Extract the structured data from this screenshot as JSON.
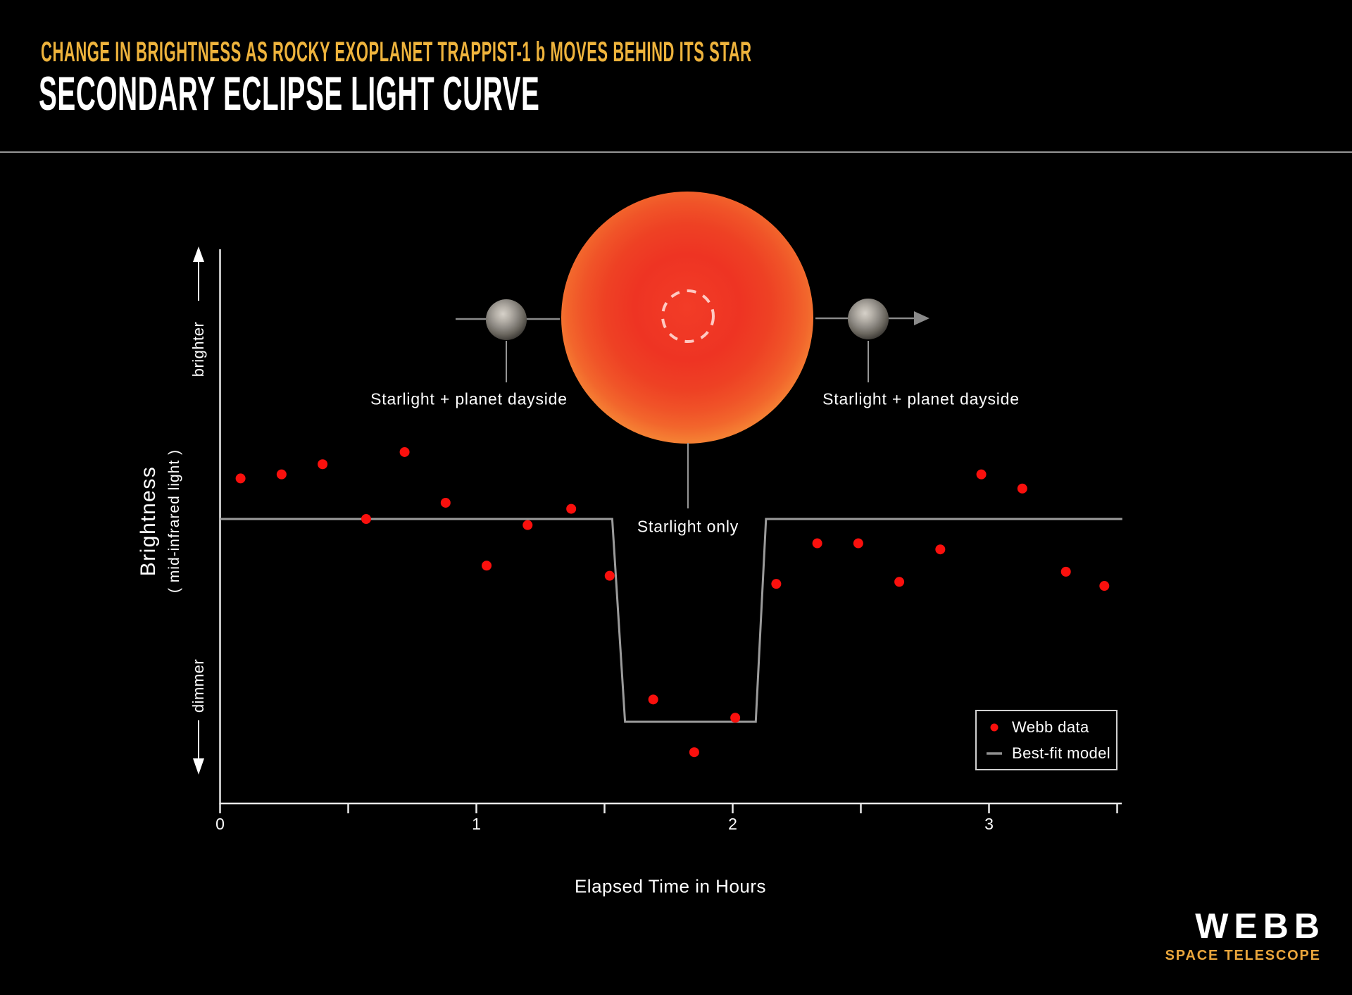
{
  "header": {
    "eyebrow": "CHANGE IN BRIGHTNESS AS ROCKY EXOPLANET TRAPPIST-1 b MOVES BEHIND ITS STAR",
    "title": "SECONDARY ECLIPSE LIGHT CURVE"
  },
  "colors": {
    "background": "#000000",
    "accent_gold": "#eeb33c",
    "title_white": "#ffffff",
    "webb_data_red": "#fa100d",
    "model_line_gray": "#9b9b9b",
    "axis_white": "#e9e9e9",
    "star_red_center": "#ee3423",
    "star_orange_rim": "#f57f33",
    "planet_gray": "#8e8a84"
  },
  "diagram": {
    "label_left": "Starlight + planet dayside",
    "label_right": "Starlight + planet dayside",
    "label_center": "Starlight only"
  },
  "axes": {
    "y_title": "Brightness",
    "y_subtitle": "( mid-infrared light )",
    "y_arrow_up_label": "brighter",
    "y_arrow_down_label": "dimmer",
    "x_title": "Elapsed Time in Hours"
  },
  "legend": {
    "items": [
      {
        "label": "Webb data",
        "marker": "red-dot"
      },
      {
        "label": "Best-fit model",
        "marker": "gray-line"
      }
    ]
  },
  "logo": {
    "title": "WEBB",
    "subtitle": "SPACE TELESCOPE"
  },
  "chart_data": {
    "type": "scatter",
    "title": "Secondary Eclipse Light Curve",
    "subtitle": "Change in brightness as rocky exoplanet TRAPPIST-1 b moves behind its star",
    "xlabel": "Elapsed Time in Hours",
    "ylabel": "Brightness ( mid-infrared light )",
    "x_range_hours": [
      0,
      3.55
    ],
    "x_major_ticks": [
      0,
      1,
      2,
      3
    ],
    "x_minor_ticks": [
      0.5,
      1.5,
      2.5,
      3.5
    ],
    "y_units": "relative brightness: 0 = starlight + planet dayside baseline, -1 = starlight-only eclipse floor",
    "grid": false,
    "legend_position": "lower right",
    "series": [
      {
        "name": "Webb data",
        "type": "scatter",
        "color": "#fa100d",
        "x": [
          0.08,
          0.24,
          0.4,
          0.57,
          0.72,
          0.88,
          1.04,
          1.2,
          1.37,
          1.52,
          1.69,
          1.85,
          2.01,
          2.17,
          2.33,
          2.49,
          2.65,
          2.81,
          2.97,
          3.13,
          3.3,
          3.45
        ],
        "y": [
          0.2,
          0.22,
          0.27,
          0.0,
          0.33,
          0.08,
          -0.23,
          -0.03,
          0.05,
          -0.28,
          -0.89,
          -1.15,
          -0.98,
          -0.32,
          -0.12,
          -0.12,
          -0.31,
          -0.15,
          0.22,
          0.15,
          -0.26,
          -0.33
        ]
      },
      {
        "name": "Best-fit model",
        "type": "line",
        "color": "#9b9b9b",
        "points": [
          [
            0,
            0
          ],
          [
            1.53,
            0
          ],
          [
            1.58,
            -1
          ],
          [
            2.09,
            -1
          ],
          [
            2.13,
            0
          ],
          [
            3.52,
            0
          ]
        ]
      }
    ],
    "annotations": [
      {
        "text": "Starlight + planet dayside",
        "x_hours": 0.97,
        "position": "before eclipse"
      },
      {
        "text": "Starlight only",
        "x_hours": 1.83,
        "position": "during eclipse"
      },
      {
        "text": "Starlight + planet dayside",
        "x_hours": 2.74,
        "position": "after eclipse"
      }
    ]
  }
}
